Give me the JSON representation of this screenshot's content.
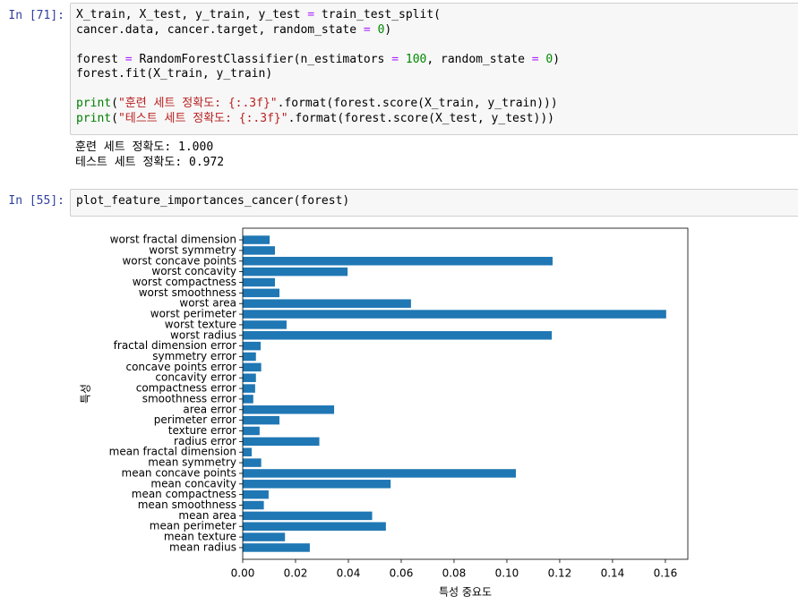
{
  "cells": [
    {
      "prompt": "In [71]:",
      "code": [
        [
          [
            "X_train, X_test, y_train, y_test ",
            {
              "text": "=",
              "color": "#aa22ff"
            },
            " train_test_split("
          ],
          [
            "cancer.data, cancer.target, random_state ",
            {
              "text": "=",
              "color": "#aa22ff"
            },
            " ",
            {
              "text": "0",
              "color": "#008800"
            },
            ")"
          ]
        ],
        [
          [
            "forest ",
            {
              "text": "=",
              "color": "#aa22ff"
            },
            " RandomForestClassifier(n_estimators ",
            {
              "text": "=",
              "color": "#aa22ff"
            },
            " ",
            {
              "text": "100",
              "color": "#008800"
            },
            ", random_state ",
            {
              "text": "=",
              "color": "#aa22ff"
            },
            " ",
            {
              "text": "0",
              "color": "#008800"
            },
            ")"
          ],
          [
            "forest.fit(X_train, y_train)"
          ]
        ],
        [
          [
            {
              "text": "print",
              "color": "#008000"
            },
            "(",
            {
              "text": "\"훈련 세트 정확도: {:.3f}\"",
              "color": "#ba2121"
            },
            ".format(forest.score(X_train, y_train)))"
          ],
          [
            {
              "text": "print",
              "color": "#008000"
            },
            "(",
            {
              "text": "\"테스트 세트 정확도: {:.3f}\"",
              "color": "#ba2121"
            },
            ".format(forest.score(X_test, y_test)))"
          ]
        ]
      ],
      "output": [
        "훈련 세트 정확도: 1.000",
        "테스트 세트 정확도: 0.972"
      ]
    },
    {
      "prompt": "In [55]:",
      "code": [
        [
          [
            "plot_feature_importances_cancer(forest)"
          ]
        ]
      ]
    }
  ],
  "chart_data": {
    "type": "barh",
    "xlabel": "특성 중요도",
    "ylabel": "특성",
    "categories": [
      "mean radius",
      "mean texture",
      "mean perimeter",
      "mean area",
      "mean smoothness",
      "mean compactness",
      "mean concavity",
      "mean concave points",
      "mean symmetry",
      "mean fractal dimension",
      "radius error",
      "texture error",
      "perimeter error",
      "area error",
      "smoothness error",
      "compactness error",
      "concavity error",
      "concave points error",
      "symmetry error",
      "fractal dimension error",
      "worst radius",
      "worst texture",
      "worst perimeter",
      "worst area",
      "worst smoothness",
      "worst compactness",
      "worst concavity",
      "worst concave points",
      "worst symmetry",
      "worst fractal dimension"
    ],
    "values": [
      0.0254,
      0.016,
      0.0542,
      0.049,
      0.008,
      0.0098,
      0.056,
      0.1034,
      0.007,
      0.0034,
      0.029,
      0.0064,
      0.0139,
      0.0346,
      0.004,
      0.0047,
      0.005,
      0.007,
      0.005,
      0.0068,
      0.117,
      0.0166,
      0.1603,
      0.0637,
      0.0139,
      0.0122,
      0.0397,
      0.1173,
      0.0122,
      0.0102
    ],
    "color": "#1f77b4",
    "xlim": [
      0,
      0.1685
    ],
    "xticks": [
      {
        "value": 0,
        "label": "0.00"
      },
      {
        "value": 0.02,
        "label": "0.02"
      },
      {
        "value": 0.04,
        "label": "0.04"
      },
      {
        "value": 0.06,
        "label": "0.06"
      },
      {
        "value": 0.08,
        "label": "0.08"
      },
      {
        "value": 0.1,
        "label": "0.10"
      },
      {
        "value": 0.12,
        "label": "0.12"
      },
      {
        "value": 0.14,
        "label": "0.14"
      },
      {
        "value": 0.16,
        "label": "0.16"
      }
    ]
  }
}
